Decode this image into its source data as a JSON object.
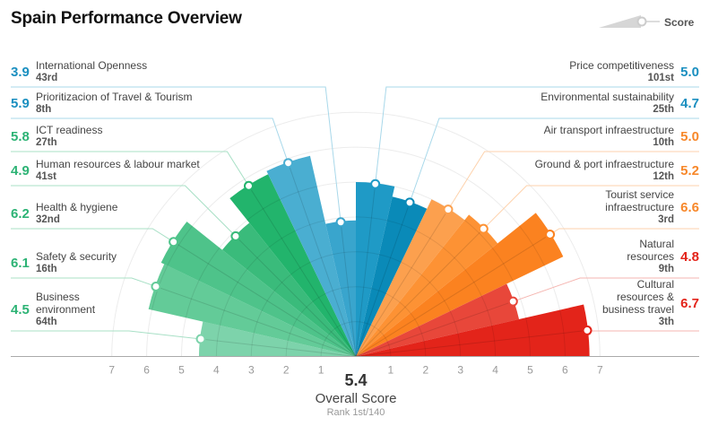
{
  "title": "Spain Performance Overview",
  "legend": {
    "label": "Score"
  },
  "overall": {
    "score": "5.4",
    "label": "Overall Score",
    "rank": "Rank 1st/140"
  },
  "colors": {
    "blue": "#1a8fc0",
    "green": "#2db375",
    "orange": "#f7882b",
    "red": "#e3241a"
  },
  "chart_data": {
    "type": "bar",
    "subtype": "polar-semicircle",
    "rlim": [
      0,
      7
    ],
    "ticks": [
      1,
      2,
      3,
      4,
      5,
      6,
      7
    ],
    "grid": true,
    "legend_placement": "top-right",
    "indicators": [
      {
        "name": "Business environment",
        "score": 4.5,
        "rank": "64th",
        "group": "green",
        "fill": "#7dd3ab"
      },
      {
        "name": "Safety & security",
        "score": 6.1,
        "rank": "16th",
        "group": "green",
        "fill": "#63cb98"
      },
      {
        "name": "Health & hygiene",
        "score": 6.2,
        "rank": "32nd",
        "group": "green",
        "fill": "#4ec38a"
      },
      {
        "name": "Human resources & labour market",
        "score": 4.9,
        "rank": "41st",
        "group": "green",
        "fill": "#3abb7b"
      },
      {
        "name": "ICT readiness",
        "score": 5.8,
        "rank": "27th",
        "group": "green",
        "fill": "#22b46c"
      },
      {
        "name": "Prioritizacion of Travel & Tourism",
        "score": 5.9,
        "rank": "8th",
        "group": "blue",
        "fill": "#4aaed1"
      },
      {
        "name": "International Openness",
        "score": 3.9,
        "rank": "43rd",
        "group": "blue",
        "fill": "#39a5cd"
      },
      {
        "name": "Price competitiveness",
        "score": 5.0,
        "rank": "101st",
        "group": "blue",
        "fill": "#1f9ac6"
      },
      {
        "name": "Environmental sustainability",
        "score": 4.7,
        "rank": "25th",
        "group": "blue",
        "fill": "#0a8ab8"
      },
      {
        "name": "Air transport infraestructure",
        "score": 5.0,
        "rank": "10th",
        "group": "orange",
        "fill": "#fca04e"
      },
      {
        "name": "Ground & port infraestructure",
        "score": 5.2,
        "rank": "12th",
        "group": "orange",
        "fill": "#fd9234"
      },
      {
        "name": "Tourist service infraestructure",
        "score": 6.6,
        "rank": "3rd",
        "group": "orange",
        "fill": "#fb8220"
      },
      {
        "name": "Natural resources",
        "score": 4.8,
        "rank": "9th",
        "group": "red",
        "fill": "#e8473a"
      },
      {
        "name": "Cultural resources & business travel",
        "score": 6.7,
        "rank": "3th",
        "group": "red",
        "fill": "#e3241a"
      }
    ]
  }
}
